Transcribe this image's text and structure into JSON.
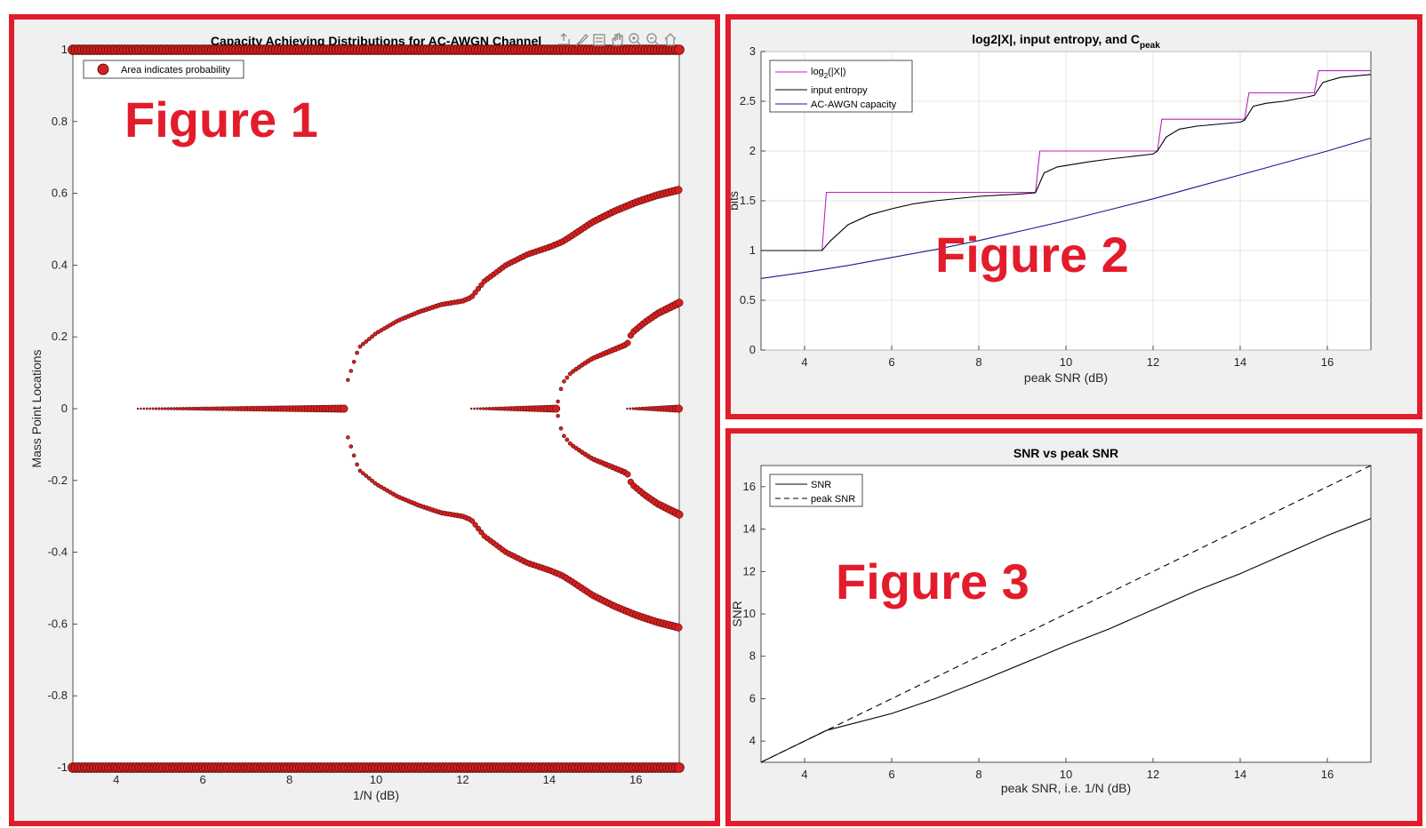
{
  "overlays": [
    "Figure 1",
    "Figure 2",
    "Figure 3"
  ],
  "colors": {
    "frame": "#e31c2b",
    "marker": "#d42020",
    "magenta": "#c020c0",
    "blue": "#1a1a8c"
  },
  "toolbar_icons": [
    "export-icon",
    "brush-icon",
    "datatip-icon",
    "pan-icon",
    "zoom-in-icon",
    "zoom-out-icon",
    "home-icon"
  ],
  "chart_data": [
    {
      "type": "scatter",
      "title": "Capacity Achieving Distributions for AC-AWGN Channel",
      "xlabel": "1/N (dB)",
      "ylabel": "Mass Point Locations",
      "xlim": [
        3,
        17
      ],
      "ylim": [
        -1,
        1
      ],
      "xticks": [
        4,
        6,
        8,
        10,
        12,
        14,
        16
      ],
      "yticks": [
        -1,
        -0.8,
        -0.6,
        -0.4,
        -0.2,
        0,
        0.2,
        0.4,
        0.6,
        0.8,
        1
      ],
      "legend": [
        "Area indicates probability"
      ],
      "legend_location": "top-left",
      "grid": false,
      "note": "Area indicates probability",
      "series": [
        {
          "kind": "edge",
          "x_start": 3,
          "x_end": 17,
          "y": 1
        },
        {
          "kind": "edge",
          "x_start": 3,
          "x_end": 17,
          "y": -1
        },
        {
          "kind": "center",
          "x_start": 4.5,
          "x_end": 9.3,
          "y": 0
        },
        {
          "kind": "branch",
          "x": [
            9.35,
            9.6,
            10,
            10.5,
            11,
            11.5,
            12,
            12.2,
            12.5,
            13,
            13.5,
            14,
            14.3,
            14.5,
            15,
            15.5,
            16,
            16.5,
            17
          ],
          "y": [
            0.08,
            0.17,
            0.21,
            0.245,
            0.27,
            0.29,
            0.3,
            0.31,
            0.355,
            0.4,
            0.43,
            0.45,
            0.465,
            0.48,
            0.52,
            0.55,
            0.575,
            0.595,
            0.61
          ]
        },
        {
          "kind": "branch",
          "x": [
            9.35,
            9.6,
            10,
            10.5,
            11,
            11.5,
            12,
            12.2,
            12.5,
            13,
            13.5,
            14,
            14.3,
            14.5,
            15,
            15.5,
            16,
            16.5,
            17
          ],
          "y": [
            -0.08,
            -0.17,
            -0.21,
            -0.245,
            -0.27,
            -0.29,
            -0.3,
            -0.31,
            -0.355,
            -0.4,
            -0.43,
            -0.45,
            -0.465,
            -0.48,
            -0.52,
            -0.55,
            -0.575,
            -0.595,
            -0.61
          ]
        },
        {
          "kind": "center",
          "x_start": 12.2,
          "x_end": 14.2,
          "y": 0
        },
        {
          "kind": "branch",
          "x": [
            14.2,
            14.3,
            14.5,
            14.8,
            15,
            15.3,
            15.6,
            15.8,
            15.9,
            16.2,
            16.5,
            17
          ],
          "y": [
            0.02,
            0.07,
            0.1,
            0.125,
            0.14,
            0.155,
            0.17,
            0.18,
            0.21,
            0.24,
            0.265,
            0.295
          ]
        },
        {
          "kind": "branch",
          "x": [
            14.2,
            14.3,
            14.5,
            14.8,
            15,
            15.3,
            15.6,
            15.8,
            15.9,
            16.2,
            16.5,
            17
          ],
          "y": [
            -0.02,
            -0.07,
            -0.1,
            -0.125,
            -0.14,
            -0.155,
            -0.17,
            -0.18,
            -0.21,
            -0.24,
            -0.265,
            -0.295
          ]
        },
        {
          "kind": "center",
          "x_start": 15.8,
          "x_end": 17,
          "y": 0
        }
      ]
    },
    {
      "type": "line",
      "title": "log2|X|, input entropy, and C",
      "title_subscript": "peak",
      "xlabel": "peak SNR (dB)",
      "ylabel": "bits",
      "xlim": [
        3,
        17
      ],
      "ylim": [
        0,
        3
      ],
      "xticks": [
        4,
        6,
        8,
        10,
        12,
        14,
        16
      ],
      "yticks": [
        0,
        0.5,
        1,
        1.5,
        2,
        2.5,
        3
      ],
      "grid": true,
      "legend_location": "top-left",
      "series": [
        {
          "name": "log",
          "name_subscript": "2",
          "name_suffix": "(|X|)",
          "color": "#c020c0",
          "x": [
            3,
            4.4,
            4.5,
            9.3,
            9.4,
            12.1,
            12.2,
            14.1,
            14.2,
            15.7,
            15.8,
            17
          ],
          "y": [
            1,
            1,
            1.585,
            1.585,
            2,
            2,
            2.32,
            2.32,
            2.585,
            2.585,
            2.807,
            2.807
          ]
        },
        {
          "name": "input entropy",
          "color": "#000000",
          "x": [
            3,
            4.4,
            4.6,
            5,
            5.5,
            6,
            6.5,
            7,
            8,
            9,
            9.3,
            9.5,
            9.8,
            10.5,
            11,
            12,
            12.1,
            12.3,
            12.6,
            13,
            14,
            14.1,
            14.3,
            14.6,
            15,
            15.5,
            15.7,
            15.9,
            16.3,
            17
          ],
          "y": [
            1,
            1,
            1.1,
            1.26,
            1.36,
            1.42,
            1.47,
            1.5,
            1.545,
            1.57,
            1.58,
            1.78,
            1.84,
            1.89,
            1.92,
            1.97,
            2,
            2.14,
            2.22,
            2.25,
            2.29,
            2.31,
            2.45,
            2.48,
            2.5,
            2.54,
            2.56,
            2.69,
            2.74,
            2.77
          ]
        },
        {
          "name": "AC-AWGN capacity",
          "color": "#1a1a8c",
          "x": [
            3,
            4,
            5,
            6,
            7,
            8,
            9,
            10,
            11,
            12,
            13,
            14,
            15,
            16,
            17
          ],
          "y": [
            0.72,
            0.78,
            0.85,
            0.93,
            1.01,
            1.1,
            1.2,
            1.3,
            1.41,
            1.52,
            1.64,
            1.76,
            1.88,
            2.0,
            2.13
          ]
        }
      ]
    },
    {
      "type": "line",
      "title": "SNR vs peak SNR",
      "xlabel": "peak SNR, i.e. 1/N (dB)",
      "ylabel": "SNR",
      "xlim": [
        3,
        17
      ],
      "ylim": [
        3,
        17
      ],
      "xticks": [
        4,
        6,
        8,
        10,
        12,
        14,
        16
      ],
      "yticks": [
        4,
        6,
        8,
        10,
        12,
        14,
        16
      ],
      "grid": false,
      "legend_location": "top-left",
      "series": [
        {
          "name": "SNR",
          "dash": false,
          "x": [
            3,
            4.5,
            6,
            7,
            8,
            9.3,
            10,
            11,
            12,
            13,
            14,
            15,
            16,
            17
          ],
          "y": [
            3,
            4.5,
            5.3,
            6.0,
            6.8,
            7.9,
            8.5,
            9.3,
            10.2,
            11.1,
            11.9,
            12.8,
            13.7,
            14.5
          ]
        },
        {
          "name": "peak SNR",
          "dash": true,
          "x": [
            3,
            17
          ],
          "y": [
            3,
            17
          ]
        }
      ]
    }
  ]
}
